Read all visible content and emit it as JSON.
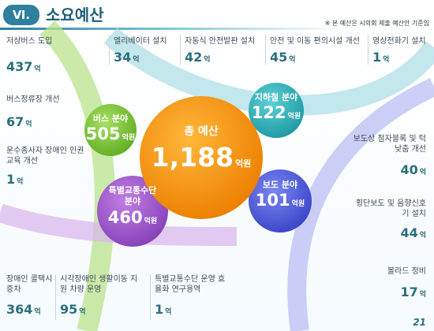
{
  "header": {
    "section_no": "Ⅵ.",
    "title": "소요예산",
    "note": "※ 본 예산은 시의회 제출 예산안 기준임",
    "page_number": "21"
  },
  "total": {
    "label": "총 예산",
    "value": "1,188",
    "unit": "억원"
  },
  "categories": [
    {
      "label": "버스 분야",
      "value": "505",
      "unit": "억원"
    },
    {
      "label": "지하철 분야",
      "value": "122",
      "unit": "억원"
    },
    {
      "label": "보도 분야",
      "value": "101",
      "unit": "억원"
    },
    {
      "label": "특별교통수단 분야",
      "value": "460",
      "unit": "억원"
    }
  ],
  "items": [
    {
      "label": "저상버스 도입",
      "value": "437",
      "unit": "억"
    },
    {
      "label": "버스정류장 개선",
      "value": "67",
      "unit": "억"
    },
    {
      "label": "운수종사자 장애인 인권교육 개선",
      "value": "1",
      "unit": "억"
    },
    {
      "label": "엘리베이터 설치",
      "value": "34",
      "unit": "억"
    },
    {
      "label": "자동식 안전발판 설치",
      "value": "42",
      "unit": "억"
    },
    {
      "label": "안전 및 이동 편의시설 개선",
      "value": "45",
      "unit": "억"
    },
    {
      "label": "영상전화기 설치",
      "value": "1",
      "unit": "억"
    },
    {
      "label": "보도상 점자블록 및 턱낮춤 개선",
      "value": "40",
      "unit": "억"
    },
    {
      "label": "횡단보도 및 음향신호기 설치",
      "value": "44",
      "unit": "억"
    },
    {
      "label": "볼라드 정비",
      "value": "17",
      "unit": "억"
    },
    {
      "label": "장애인 콜택시 증차",
      "value": "364",
      "unit": "억"
    },
    {
      "label": "시각장애인 생활이동 지원 차량 운영",
      "value": "95",
      "unit": "억"
    },
    {
      "label": "특별교통수단 운영 효율화 연구용역",
      "value": "1",
      "unit": "억"
    }
  ],
  "colors": {
    "total": "#f28c00",
    "bus": "#7cc63a",
    "subway": "#2aaab3",
    "sidewalk": "#4a55d8",
    "special": "#9b55c9",
    "amount_text": "#2a6f7a",
    "title_bar": "#2f7f9e"
  }
}
